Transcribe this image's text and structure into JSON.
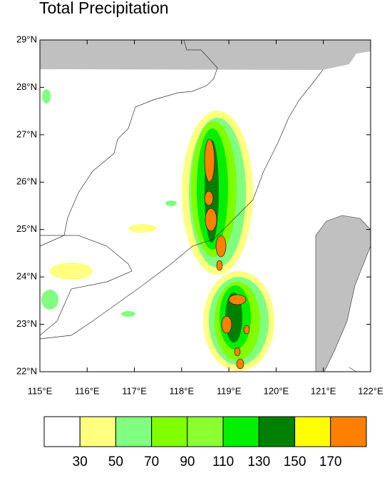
{
  "map": {
    "title": "Total Precipitation",
    "xlim": [
      115,
      122
    ],
    "ylim": [
      22,
      29
    ],
    "xticks": [
      {
        "value": 115,
        "label": "115°E"
      },
      {
        "value": 116,
        "label": "116°E"
      },
      {
        "value": 117,
        "label": "117°E"
      },
      {
        "value": 118,
        "label": "118°E"
      },
      {
        "value": 119,
        "label": "119°E"
      },
      {
        "value": 120,
        "label": "120°E"
      },
      {
        "value": 121,
        "label": "121°E"
      },
      {
        "value": 122,
        "label": "122°E"
      }
    ],
    "yticks": [
      {
        "value": 22,
        "label": "22°N"
      },
      {
        "value": 23,
        "label": "23°N"
      },
      {
        "value": 24,
        "label": "24°N"
      },
      {
        "value": 25,
        "label": "25°N"
      },
      {
        "value": 26,
        "label": "26°N"
      },
      {
        "value": 27,
        "label": "27°N"
      },
      {
        "value": 28,
        "label": "28°N"
      },
      {
        "value": 29,
        "label": "29°N"
      }
    ],
    "colorbar": {
      "colors": [
        "#ffffff",
        "#ffff80",
        "#80ff80",
        "#80ff00",
        "#8cff30",
        "#00f000",
        "#008000",
        "#ffff00",
        "#ff8000"
      ],
      "levels": [
        30,
        50,
        70,
        90,
        110,
        130,
        150,
        170
      ]
    }
  }
}
